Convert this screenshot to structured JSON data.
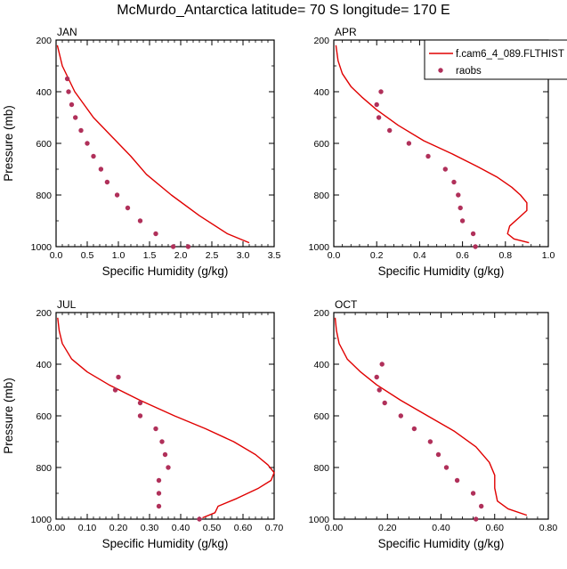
{
  "figure_title": "McMurdo_Antarctica  latitude= 70 S longitude= 170 E",
  "colors": {
    "model": "#e00000",
    "obs": "#b0305a",
    "axis": "#000000"
  },
  "legend": {
    "placement": "top-right of APR panel",
    "model_label": "f.cam6_4_089.FLTHIST",
    "obs_label": "raobs"
  },
  "chart_data": [
    {
      "type": "line",
      "panel": "JAN",
      "title": "JAN",
      "xlabel": "Specific Humidity (g/kg)",
      "ylabel": "Pressure (mb)",
      "xlim": [
        0,
        3.5
      ],
      "ylim": [
        1000,
        200
      ],
      "y_inverted": true,
      "x_ticks": [
        0,
        0.5,
        1.0,
        1.5,
        2.0,
        2.5,
        3.0,
        3.5
      ],
      "x_tick_labels": [
        "0.0",
        "0.5",
        "1.0",
        "1.5",
        "2.0",
        "2.5",
        "3.0",
        "3.5"
      ],
      "y_ticks": [
        200,
        400,
        600,
        800,
        1000
      ],
      "y_tick_labels": [
        "200",
        "400",
        "600",
        "800",
        "1000"
      ],
      "series": [
        {
          "name": "f.cam6_4_089.FLTHIST",
          "kind": "line",
          "x": [
            0.02,
            0.05,
            0.1,
            0.2,
            0.3,
            0.45,
            0.6,
            0.8,
            1.0,
            1.2,
            1.45,
            1.85,
            2.3,
            2.75,
            3.1
          ],
          "y": [
            220,
            250,
            300,
            350,
            400,
            450,
            500,
            550,
            600,
            650,
            720,
            800,
            880,
            950,
            985
          ]
        },
        {
          "name": "raobs",
          "kind": "scatter",
          "x": [
            0.18,
            0.2,
            0.25,
            0.31,
            0.4,
            0.5,
            0.6,
            0.72,
            0.82,
            0.98,
            1.15,
            1.35,
            1.6,
            1.88,
            2.12
          ],
          "y": [
            350,
            400,
            450,
            500,
            550,
            600,
            650,
            700,
            750,
            800,
            850,
            900,
            950,
            1000,
            1000
          ]
        }
      ]
    },
    {
      "type": "line",
      "panel": "APR",
      "title": "APR",
      "xlabel": "Specific Humidity (g/kg)",
      "ylabel": "",
      "xlim": [
        0,
        1.0
      ],
      "ylim": [
        1000,
        200
      ],
      "y_inverted": true,
      "x_ticks": [
        0,
        0.2,
        0.4,
        0.6,
        0.8,
        1.0
      ],
      "x_tick_labels": [
        "0.0",
        "0.2",
        "0.4",
        "0.6",
        "0.8",
        "1.0"
      ],
      "y_ticks": [
        200,
        400,
        600,
        800,
        1000
      ],
      "y_tick_labels": [
        "200",
        "400",
        "600",
        "800",
        "1000"
      ],
      "series": [
        {
          "name": "f.cam6_4_089.FLTHIST",
          "kind": "line",
          "x": [
            0.01,
            0.02,
            0.04,
            0.08,
            0.13,
            0.2,
            0.3,
            0.42,
            0.55,
            0.67,
            0.76,
            0.83,
            0.87,
            0.9,
            0.9,
            0.86,
            0.82,
            0.81,
            0.84,
            0.91
          ],
          "y": [
            220,
            280,
            330,
            380,
            420,
            470,
            530,
            590,
            640,
            690,
            730,
            770,
            800,
            830,
            860,
            890,
            920,
            950,
            970,
            985
          ]
        },
        {
          "name": "raobs",
          "kind": "scatter",
          "x": [
            0.22,
            0.2,
            0.21,
            0.26,
            0.35,
            0.44,
            0.52,
            0.56,
            0.58,
            0.59,
            0.6,
            0.65,
            0.66
          ],
          "y": [
            400,
            450,
            500,
            550,
            600,
            650,
            700,
            750,
            800,
            850,
            900,
            950,
            1000
          ]
        }
      ]
    },
    {
      "type": "line",
      "panel": "JUL",
      "title": "JUL",
      "xlabel": "Specific Humidity (g/kg)",
      "ylabel": "Pressure (mb)",
      "xlim": [
        0,
        0.7
      ],
      "ylim": [
        1000,
        200
      ],
      "y_inverted": true,
      "x_ticks": [
        0,
        0.1,
        0.2,
        0.3,
        0.4,
        0.5,
        0.6,
        0.7
      ],
      "x_tick_labels": [
        "0.00",
        "0.10",
        "0.20",
        "0.30",
        "0.40",
        "0.50",
        "0.60",
        "0.70"
      ],
      "y_ticks": [
        200,
        400,
        600,
        800,
        1000
      ],
      "y_tick_labels": [
        "200",
        "400",
        "600",
        "800",
        "1000"
      ],
      "series": [
        {
          "name": "f.cam6_4_089.FLTHIST",
          "kind": "line",
          "x": [
            0.005,
            0.01,
            0.02,
            0.05,
            0.1,
            0.17,
            0.27,
            0.38,
            0.48,
            0.57,
            0.64,
            0.68,
            0.7,
            0.69,
            0.65,
            0.58,
            0.52,
            0.51,
            0.47
          ],
          "y": [
            220,
            270,
            320,
            380,
            430,
            480,
            540,
            600,
            650,
            700,
            750,
            790,
            820,
            850,
            880,
            920,
            950,
            975,
            995
          ]
        },
        {
          "name": "raobs",
          "kind": "scatter",
          "x": [
            0.2,
            0.19,
            0.27,
            0.27,
            0.32,
            0.34,
            0.35,
            0.36,
            0.33,
            0.33,
            0.33,
            0.46
          ],
          "y": [
            450,
            500,
            550,
            600,
            650,
            700,
            750,
            800,
            850,
            900,
            950,
            1000
          ]
        }
      ]
    },
    {
      "type": "line",
      "panel": "OCT",
      "title": "OCT",
      "xlabel": "Specific Humidity (g/kg)",
      "ylabel": "",
      "xlim": [
        0,
        0.8
      ],
      "ylim": [
        1000,
        200
      ],
      "y_inverted": true,
      "x_ticks": [
        0,
        0.2,
        0.4,
        0.6,
        0.8
      ],
      "x_tick_labels": [
        "0.00",
        "0.20",
        "0.40",
        "0.60",
        "0.80"
      ],
      "y_ticks": [
        200,
        400,
        600,
        800,
        1000
      ],
      "y_tick_labels": [
        "200",
        "400",
        "600",
        "800",
        "1000"
      ],
      "series": [
        {
          "name": "f.cam6_4_089.FLTHIST",
          "kind": "line",
          "x": [
            0.005,
            0.01,
            0.02,
            0.05,
            0.1,
            0.16,
            0.25,
            0.35,
            0.45,
            0.53,
            0.58,
            0.6,
            0.6,
            0.61,
            0.65,
            0.72
          ],
          "y": [
            220,
            270,
            320,
            380,
            430,
            480,
            540,
            600,
            660,
            720,
            780,
            830,
            880,
            930,
            960,
            985
          ]
        },
        {
          "name": "raobs",
          "kind": "scatter",
          "x": [
            0.18,
            0.16,
            0.17,
            0.19,
            0.25,
            0.3,
            0.36,
            0.39,
            0.42,
            0.46,
            0.52,
            0.55,
            0.53
          ],
          "y": [
            400,
            450,
            500,
            550,
            600,
            650,
            700,
            750,
            800,
            850,
            900,
            950,
            1000
          ]
        }
      ]
    }
  ]
}
